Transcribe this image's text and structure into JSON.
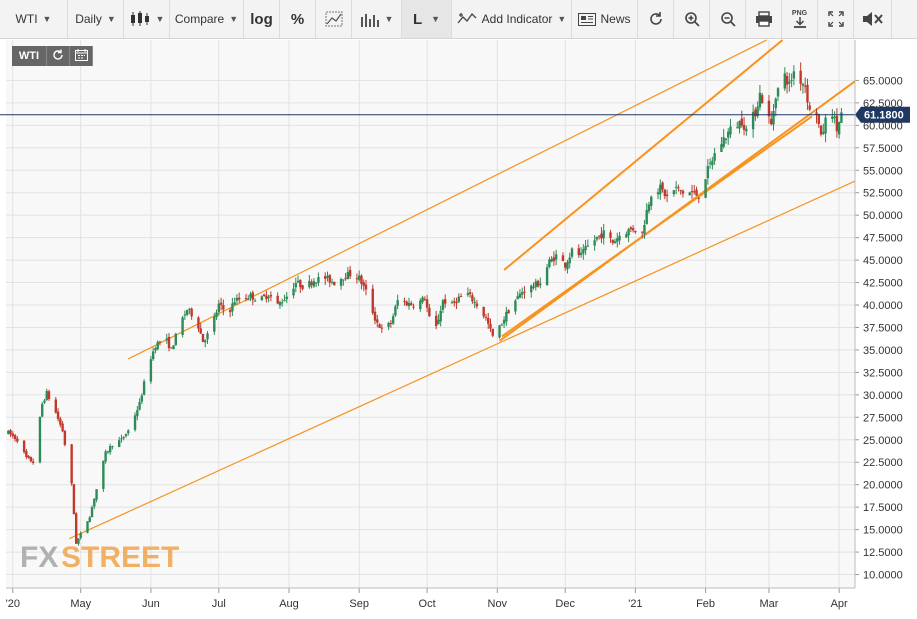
{
  "toolbar": {
    "symbol": "WTI",
    "period": "Daily",
    "compare": "Compare",
    "log": "log",
    "percent": "%",
    "line_tool": "L",
    "add_indicator": "Add Indicator",
    "news": "News",
    "png": "PNG"
  },
  "mini_toolbar": {
    "symbol": "WTI"
  },
  "watermark": {
    "fx": "FX",
    "street": "STREET"
  },
  "colors": {
    "up": "#2e8b57",
    "down": "#c0392b",
    "trend": "#f7931e",
    "price_line": "#1f3864",
    "price_badge": "#1f3864"
  },
  "chart_data": {
    "type": "candlestick",
    "symbol": "WTI",
    "interval": "daily",
    "ylim": [
      8.5,
      69.5
    ],
    "y_ticks": [
      "10.0000",
      "12.5000",
      "15.0000",
      "17.5000",
      "20.0000",
      "22.5000",
      "25.0000",
      "27.5000",
      "30.0000",
      "32.5000",
      "35.0000",
      "37.5000",
      "40.0000",
      "42.5000",
      "45.0000",
      "47.5000",
      "50.0000",
      "52.5000",
      "55.0000",
      "57.5000",
      "60.0000",
      "62.5000",
      "65.0000"
    ],
    "y_tick_values": [
      10,
      12.5,
      15,
      17.5,
      20,
      22.5,
      25,
      27.5,
      30,
      32.5,
      35,
      37.5,
      40,
      42.5,
      45,
      47.5,
      50,
      52.5,
      55,
      57.5,
      60,
      62.5,
      65
    ],
    "x_range": [
      "2020-03-29",
      "2021-04-08"
    ],
    "x_ticks": [
      {
        "label": "'20",
        "date": "2020-04-01"
      },
      {
        "label": "May",
        "date": "2020-05-01"
      },
      {
        "label": "Jun",
        "date": "2020-06-01"
      },
      {
        "label": "Jul",
        "date": "2020-07-01"
      },
      {
        "label": "Aug",
        "date": "2020-08-01"
      },
      {
        "label": "Sep",
        "date": "2020-09-01"
      },
      {
        "label": "Oct",
        "date": "2020-10-01"
      },
      {
        "label": "Nov",
        "date": "2020-11-01"
      },
      {
        "label": "Dec",
        "date": "2020-12-01"
      },
      {
        "label": "'21",
        "date": "2021-01-01"
      },
      {
        "label": "Feb",
        "date": "2021-02-01"
      },
      {
        "label": "Mar",
        "date": "2021-03-01"
      },
      {
        "label": "Apr",
        "date": "2021-04-01"
      }
    ],
    "last_price": 61.18,
    "last_price_label": "61.1800",
    "price_path": [
      [
        "2020-03-30",
        25.8
      ],
      [
        "2020-04-03",
        25.0
      ],
      [
        "2020-04-07",
        23.0
      ],
      [
        "2020-04-10",
        22.5
      ],
      [
        "2020-04-14",
        29.0
      ],
      [
        "2020-04-16",
        30.2
      ],
      [
        "2020-04-20",
        28.0
      ],
      [
        "2020-04-23",
        26.0
      ],
      [
        "2020-04-27",
        20.0
      ],
      [
        "2020-04-29",
        13.5
      ],
      [
        "2020-05-01",
        14.5
      ],
      [
        "2020-05-05",
        16.5
      ],
      [
        "2020-05-08",
        19.5
      ],
      [
        "2020-05-12",
        23.5
      ],
      [
        "2020-05-15",
        24.5
      ],
      [
        "2020-05-19",
        25.0
      ],
      [
        "2020-05-22",
        26.0
      ],
      [
        "2020-05-27",
        29.0
      ],
      [
        "2020-05-31",
        33.5
      ],
      [
        "2020-06-03",
        35.5
      ],
      [
        "2020-06-07",
        36.5
      ],
      [
        "2020-06-10",
        35.0
      ],
      [
        "2020-06-14",
        38.0
      ],
      [
        "2020-06-17",
        39.5
      ],
      [
        "2020-06-21",
        38.5
      ],
      [
        "2020-06-24",
        36.0
      ],
      [
        "2020-06-27",
        37.0
      ],
      [
        "2020-07-01",
        40.0
      ],
      [
        "2020-07-05",
        39.0
      ],
      [
        "2020-07-08",
        40.5
      ],
      [
        "2020-07-12",
        40.8
      ],
      [
        "2020-07-15",
        41.0
      ],
      [
        "2020-07-19",
        40.5
      ],
      [
        "2020-07-23",
        41.2
      ],
      [
        "2020-07-27",
        40.0
      ],
      [
        "2020-07-31",
        41.0
      ],
      [
        "2020-08-04",
        42.5
      ],
      [
        "2020-08-08",
        42.0
      ],
      [
        "2020-08-12",
        42.8
      ],
      [
        "2020-08-17",
        43.0
      ],
      [
        "2020-08-21",
        42.5
      ],
      [
        "2020-08-25",
        43.2
      ],
      [
        "2020-08-29",
        43.5
      ],
      [
        "2020-09-01",
        43.0
      ],
      [
        "2020-09-04",
        41.5
      ],
      [
        "2020-09-08",
        38.5
      ],
      [
        "2020-09-11",
        37.2
      ],
      [
        "2020-09-15",
        38.0
      ],
      [
        "2020-09-18",
        40.5
      ],
      [
        "2020-09-22",
        40.2
      ],
      [
        "2020-09-26",
        40.0
      ],
      [
        "2020-09-30",
        40.8
      ],
      [
        "2020-10-02",
        38.5
      ],
      [
        "2020-10-05",
        37.5
      ],
      [
        "2020-10-08",
        40.5
      ],
      [
        "2020-10-12",
        40.0
      ],
      [
        "2020-10-15",
        40.8
      ],
      [
        "2020-10-19",
        41.2
      ],
      [
        "2020-10-23",
        40.0
      ],
      [
        "2020-10-27",
        38.5
      ],
      [
        "2020-10-30",
        36.5
      ],
      [
        "2020-11-02",
        37.5
      ],
      [
        "2020-11-05",
        39.0
      ],
      [
        "2020-11-09",
        40.5
      ],
      [
        "2020-11-12",
        41.5
      ],
      [
        "2020-11-16",
        42.0
      ],
      [
        "2020-11-20",
        42.5
      ],
      [
        "2020-11-24",
        44.8
      ],
      [
        "2020-11-27",
        45.5
      ],
      [
        "2020-12-01",
        44.5
      ],
      [
        "2020-12-04",
        46.0
      ],
      [
        "2020-12-08",
        45.5
      ],
      [
        "2020-12-11",
        46.5
      ],
      [
        "2020-12-15",
        47.5
      ],
      [
        "2020-12-18",
        48.0
      ],
      [
        "2020-12-22",
        47.0
      ],
      [
        "2020-12-26",
        48.0
      ],
      [
        "2020-12-31",
        48.5
      ],
      [
        "2021-01-04",
        48.0
      ],
      [
        "2021-01-06",
        50.5
      ],
      [
        "2021-01-08",
        52.5
      ],
      [
        "2021-01-12",
        53.0
      ],
      [
        "2021-01-15",
        52.0
      ],
      [
        "2021-01-19",
        53.0
      ],
      [
        "2021-01-22",
        52.5
      ],
      [
        "2021-01-26",
        52.5
      ],
      [
        "2021-01-29",
        52.2
      ],
      [
        "2021-02-02",
        55.0
      ],
      [
        "2021-02-05",
        56.8
      ],
      [
        "2021-02-09",
        58.5
      ],
      [
        "2021-02-12",
        59.5
      ],
      [
        "2021-02-17",
        60.5
      ],
      [
        "2021-02-19",
        59.5
      ],
      [
        "2021-02-23",
        61.5
      ],
      [
        "2021-02-25",
        63.5
      ],
      [
        "2021-02-28",
        61.5
      ],
      [
        "2021-03-02",
        60.0
      ],
      [
        "2021-03-04",
        63.5
      ],
      [
        "2021-03-08",
        65.5
      ],
      [
        "2021-03-10",
        64.5
      ],
      [
        "2021-03-12",
        66.0
      ],
      [
        "2021-03-15",
        65.0
      ],
      [
        "2021-03-17",
        64.5
      ],
      [
        "2021-03-19",
        61.5
      ],
      [
        "2021-03-22",
        61.5
      ],
      [
        "2021-03-24",
        58.5
      ],
      [
        "2021-03-26",
        60.5
      ],
      [
        "2021-03-29",
        61.5
      ],
      [
        "2021-03-31",
        59.5
      ],
      [
        "2021-04-02",
        61.2
      ]
    ],
    "trendlines": [
      {
        "from": [
          "2020-04-26",
          14.0
        ],
        "to": [
          "2021-04-08",
          53.8
        ]
      },
      {
        "from": [
          "2020-05-22",
          34.0
        ],
        "to": [
          "2021-02-28",
          69.5
        ]
      },
      {
        "from": [
          "2020-11-02",
          36.0
        ],
        "to": [
          "2021-04-08",
          64.9
        ]
      },
      {
        "from": [
          "2020-11-03",
          36.5
        ],
        "to": [
          "2021-03-20",
          61.0
        ]
      },
      {
        "from": [
          "2020-11-04",
          43.9
        ],
        "to": [
          "2021-03-07",
          69.5
        ]
      }
    ]
  }
}
